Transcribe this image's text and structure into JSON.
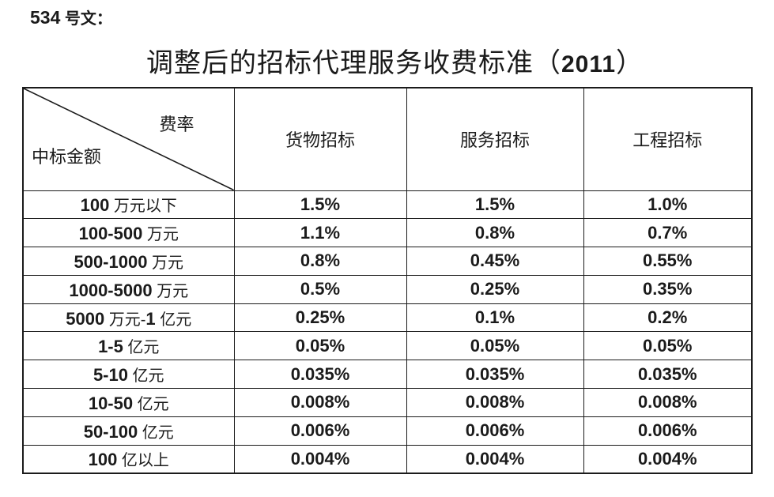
{
  "doc_label": "534 号文：",
  "title": "调整后的招标代理服务收费标准（2011）",
  "table": {
    "corner": {
      "top_right": "费率",
      "bottom_left": "中标金额"
    },
    "columns": [
      "货物招标",
      "服务招标",
      "工程招标"
    ],
    "rows": [
      {
        "amount": "100 万元以下",
        "values": [
          "1.5%",
          "1.5%",
          "1.0%"
        ]
      },
      {
        "amount": "100-500 万元",
        "values": [
          "1.1%",
          "0.8%",
          "0.7%"
        ]
      },
      {
        "amount": "500-1000 万元",
        "values": [
          "0.8%",
          "0.45%",
          "0.55%"
        ]
      },
      {
        "amount": "1000-5000 万元",
        "values": [
          "0.5%",
          "0.25%",
          "0.35%"
        ]
      },
      {
        "amount": "5000 万元-1 亿元",
        "values": [
          "0.25%",
          "0.1%",
          "0.2%"
        ]
      },
      {
        "amount": "1-5 亿元",
        "values": [
          "0.05%",
          "0.05%",
          "0.05%"
        ]
      },
      {
        "amount": "5-10 亿元",
        "values": [
          "0.035%",
          "0.035%",
          "0.035%"
        ]
      },
      {
        "amount": "10-50 亿元",
        "values": [
          "0.008%",
          "0.008%",
          "0.008%"
        ]
      },
      {
        "amount": "50-100 亿元",
        "values": [
          "0.006%",
          "0.006%",
          "0.006%"
        ]
      },
      {
        "amount": "100 亿以上",
        "values": [
          "0.004%",
          "0.004%",
          "0.004%"
        ]
      }
    ]
  }
}
